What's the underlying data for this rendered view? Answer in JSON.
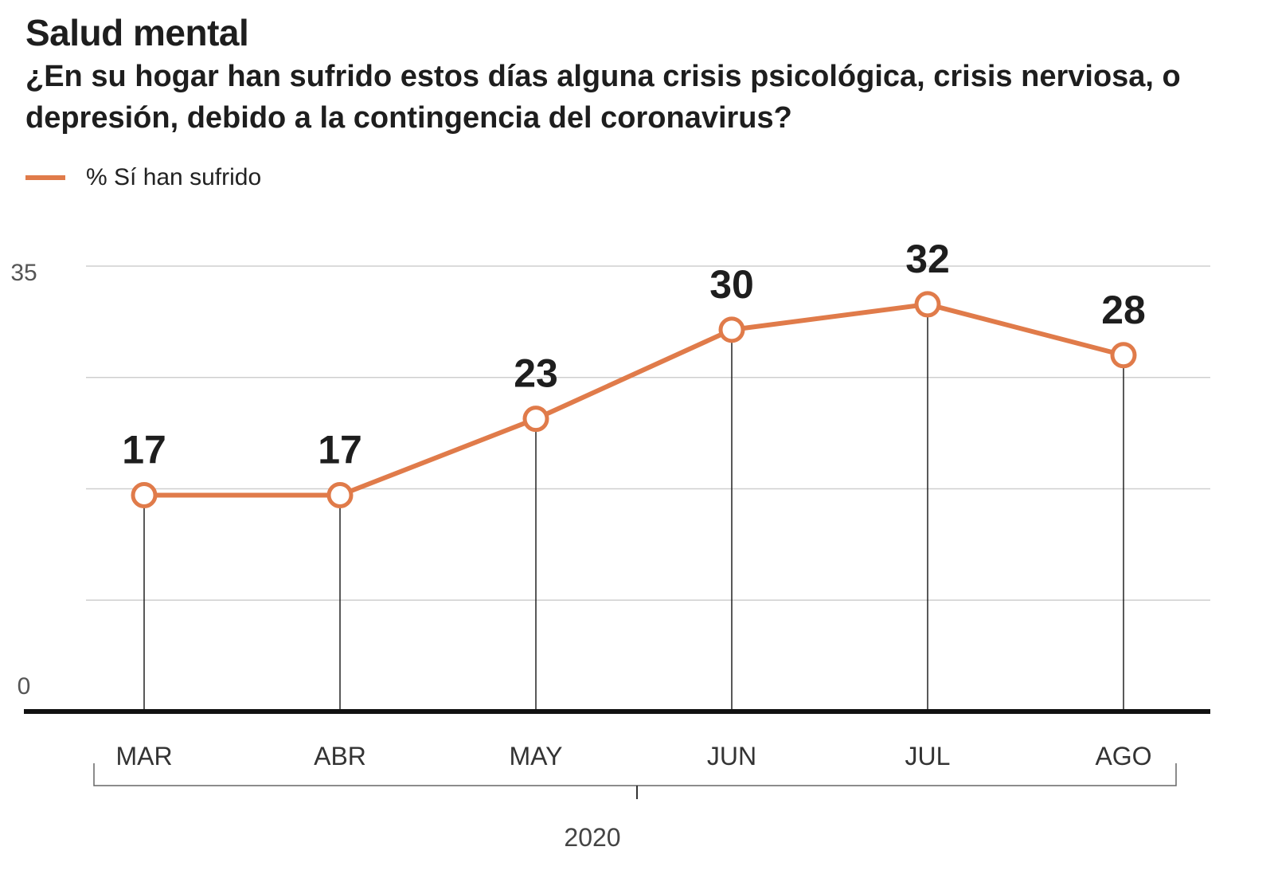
{
  "header": {
    "title": "Salud mental",
    "subtitle": "¿En su hogar han sufrido estos días alguna crisis psicológica, crisis nerviosa, o depresión, debido a la contingencia del coronavirus?"
  },
  "legend": {
    "label": "% Sí han sufrido",
    "color": "#e07b4a"
  },
  "chart_data": {
    "type": "line",
    "categories": [
      "MAR",
      "ABR",
      "MAY",
      "JUN",
      "JUL",
      "AGO"
    ],
    "series": [
      {
        "name": "% Sí han sufrido",
        "values": [
          17,
          17,
          23,
          30,
          32,
          28
        ],
        "color": "#e07b4a"
      }
    ],
    "y_ticks": [
      "0",
      "35"
    ],
    "ylim": [
      0,
      35
    ],
    "grid": true,
    "period_label": "2020",
    "legend_position": "top-left"
  }
}
